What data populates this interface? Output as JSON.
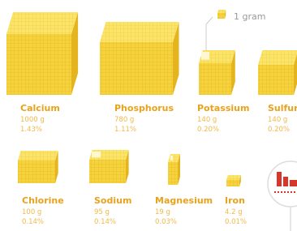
{
  "legend": {
    "label": "1 gram"
  },
  "items": [
    {
      "name": "Calcium",
      "mass": "1000 g",
      "percent": "1.43%"
    },
    {
      "name": "Phosphorus",
      "mass": "780 g",
      "percent": "1.11%"
    },
    {
      "name": "Potassium",
      "mass": "140 g",
      "percent": "0.20%"
    },
    {
      "name": "Sulfur",
      "mass": "140 g",
      "percent": "0.20%"
    },
    {
      "name": "Chlorine",
      "mass": "100 g",
      "percent": "0.14%"
    },
    {
      "name": "Sodium",
      "mass": "95 g",
      "percent": "0.14%"
    },
    {
      "name": "Magnesium",
      "mass": "19 g",
      "percent": "0.03%"
    },
    {
      "name": "Iron",
      "mass": "4.2 g",
      "percent": "0.01%"
    }
  ]
}
